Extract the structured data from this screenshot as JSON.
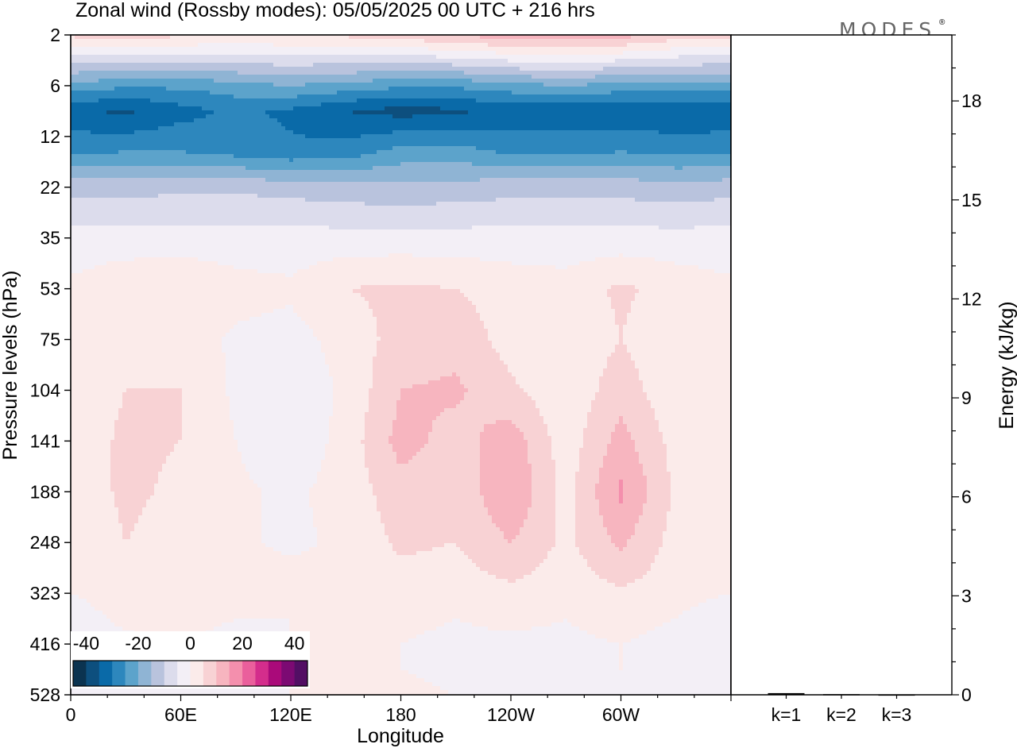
{
  "logo": "MODES",
  "logo_mark": "®",
  "chart_data": {
    "type": "heatmap",
    "title": "Zonal wind (Rossby modes):  05/05/2025  00 UTC  + 216 hrs",
    "xlabel": "Longitude",
    "ylabel": "Pressure levels (hPa)",
    "x_ticks": [
      "0",
      "60E",
      "120E",
      "180",
      "120W",
      "60W"
    ],
    "x_tick_lon": [
      0,
      60,
      120,
      180,
      240,
      300
    ],
    "x_range": [
      0,
      360
    ],
    "y_levels": [
      2,
      6,
      12,
      22,
      35,
      53,
      75,
      104,
      141,
      188,
      248,
      323,
      416,
      528
    ],
    "colorbar": {
      "labels": [
        "-40",
        "-20",
        "0",
        "20",
        "40"
      ],
      "label_values": [
        -40,
        -20,
        0,
        20,
        40
      ],
      "min": -45,
      "max": 45,
      "step": 5,
      "colors": [
        "#0b3350",
        "#0d4f7e",
        "#0a6aa8",
        "#2d87bd",
        "#5ca3cb",
        "#8fb4d4",
        "#b9c3dd",
        "#dcdcec",
        "#f3eff6",
        "#fbebea",
        "#f8d2d4",
        "#f7b5bf",
        "#f48fad",
        "#ea5f9c",
        "#d42d8c",
        "#aa0a7a",
        "#7c0a73",
        "#520f64"
      ]
    },
    "zonal_wind_ms": [
      [
        6,
        7,
        6,
        5,
        5,
        6,
        8,
        10,
        13,
        14,
        12,
        8
      ],
      [
        -22,
        -24,
        -24,
        -22,
        -20,
        -22,
        -24,
        -24,
        -22,
        -20,
        -22,
        -22
      ],
      [
        -34,
        -36,
        -32,
        -29,
        -31,
        -35,
        -37,
        -36,
        -33,
        -34,
        -34,
        -35
      ],
      [
        -26,
        -25,
        -25,
        -27,
        -29,
        -28,
        -23,
        -23,
        -26,
        -26,
        -25,
        -26
      ],
      [
        -12,
        -12,
        -11,
        -11,
        -12,
        -13,
        -14,
        -13,
        -12,
        -12,
        -12,
        -13
      ],
      [
        -3,
        -3,
        -3,
        -3,
        -3,
        -3,
        -3,
        -3,
        -3,
        -3,
        -3,
        -3
      ],
      [
        1,
        4,
        5,
        2,
        1,
        5,
        6,
        5,
        3,
        2,
        6,
        3
      ],
      [
        1,
        2,
        3,
        -1,
        -2,
        2,
        7,
        8,
        3,
        1,
        5,
        0
      ],
      [
        2,
        5,
        5,
        -1,
        -4,
        1,
        10,
        11,
        6,
        1,
        8,
        1
      ],
      [
        2,
        6,
        5,
        0,
        -4,
        2,
        12,
        8,
        13,
        2,
        12,
        3
      ],
      [
        2,
        6,
        4,
        1,
        -1,
        2,
        8,
        6,
        15,
        3,
        16,
        4
      ],
      [
        1,
        5,
        3,
        1,
        -1,
        1,
        6,
        5,
        10,
        4,
        11,
        3
      ],
      [
        1,
        4,
        2,
        1,
        1,
        1,
        4,
        3,
        7,
        2,
        8,
        2
      ],
      [
        0,
        2,
        1,
        1,
        1,
        1,
        2,
        1,
        3,
        1,
        4,
        1
      ],
      [
        -2,
        1,
        1,
        0,
        0,
        1,
        1,
        0,
        1,
        0,
        2,
        0
      ],
      [
        -3,
        -1,
        0,
        -1,
        0,
        0,
        0,
        -1,
        -1,
        -1,
        0,
        -2
      ],
      [
        -2,
        -1,
        0,
        -1,
        0,
        1,
        0,
        -1,
        -1,
        -3,
        0,
        -2
      ],
      [
        -1,
        -1,
        0,
        -1,
        0,
        0,
        1,
        0,
        -1,
        -3,
        -1,
        -1
      ]
    ],
    "field_rows_hpa": [
      2,
      6,
      9,
      15,
      22,
      35,
      53,
      75,
      104,
      141,
      188,
      248,
      290,
      323,
      370,
      416,
      470,
      528
    ],
    "energy_panel": {
      "ylabel": "Energy (kJ/kg)",
      "y_ticks": [
        "0",
        "3",
        "6",
        "9",
        "12",
        "15",
        "18"
      ],
      "y_tick_values": [
        0,
        3,
        6,
        9,
        12,
        15,
        18
      ],
      "ylim": [
        0,
        20
      ],
      "categories": [
        "k=1",
        "k=2",
        "k=3"
      ],
      "values": [
        0.05,
        0.02,
        0.01
      ]
    }
  }
}
